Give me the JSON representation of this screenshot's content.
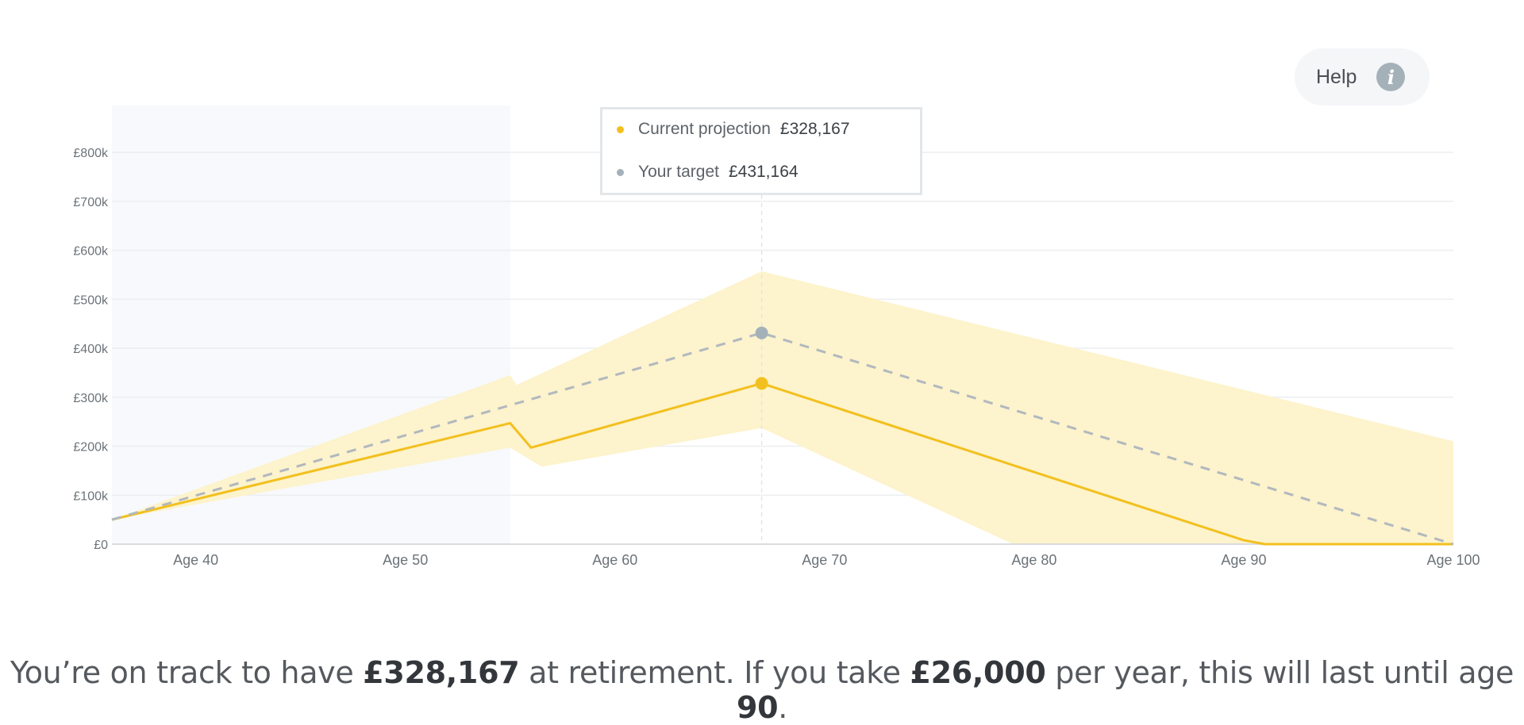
{
  "help": {
    "label": "Help",
    "icon": "info-icon"
  },
  "tooltip": {
    "rows": [
      {
        "name": "Current projection",
        "value": "£328,167",
        "color": "#f2c01e"
      },
      {
        "name": "Your target",
        "value": "£431,164",
        "color": "#a5b1b9"
      }
    ]
  },
  "summary": {
    "p1": "You’re on track to have ",
    "amount": "£328,167",
    "p2": " at retirement. If you take ",
    "annual": "£26,000",
    "p3": " per year, this will last until age ",
    "age": "90",
    "p4": "."
  },
  "chart_data": {
    "type": "line",
    "xlim": [
      36,
      100
    ],
    "ylim": [
      0,
      800000
    ],
    "yticks": [
      {
        "value": 0,
        "label": "£0"
      },
      {
        "value": 100000,
        "label": "£100k"
      },
      {
        "value": 200000,
        "label": "£200k"
      },
      {
        "value": 300000,
        "label": "£300k"
      },
      {
        "value": 400000,
        "label": "£400k"
      },
      {
        "value": 500000,
        "label": "£500k"
      },
      {
        "value": 600000,
        "label": "£600k"
      },
      {
        "value": 700000,
        "label": "£700k"
      },
      {
        "value": 800000,
        "label": "£800k"
      }
    ],
    "xticks": [
      {
        "value": 40,
        "label": "Age 40"
      },
      {
        "value": 50,
        "label": "Age 50"
      },
      {
        "value": 60,
        "label": "Age 60"
      },
      {
        "value": 70,
        "label": "Age 70"
      },
      {
        "value": 80,
        "label": "Age 80"
      },
      {
        "value": 90,
        "label": "Age 90"
      },
      {
        "value": 100,
        "label": "Age 100"
      }
    ],
    "grid": true,
    "shaded_period": [
      36,
      55
    ],
    "marker_x": 67,
    "series": [
      {
        "name": "Current projection",
        "color": "#f2c01e",
        "style": "solid",
        "points": [
          [
            36,
            50000
          ],
          [
            55,
            247000
          ],
          [
            56,
            197000
          ],
          [
            67,
            328167
          ],
          [
            90,
            8000
          ],
          [
            91,
            0
          ],
          [
            100,
            0
          ]
        ]
      },
      {
        "name": "Your target",
        "color": "#b1b8be",
        "style": "dashed",
        "points": [
          [
            36,
            50000
          ],
          [
            67,
            431164
          ],
          [
            100,
            0
          ]
        ]
      }
    ],
    "band": {
      "color": "#fdf3cc",
      "upper": [
        [
          36,
          50000
        ],
        [
          55,
          345000
        ],
        [
          55.3,
          325000
        ],
        [
          67,
          557000
        ],
        [
          100,
          210000
        ]
      ],
      "lower": [
        [
          100,
          0
        ],
        [
          79,
          0
        ],
        [
          67,
          237000
        ],
        [
          56.5,
          158000
        ],
        [
          55,
          197000
        ],
        [
          36,
          50000
        ]
      ]
    }
  }
}
